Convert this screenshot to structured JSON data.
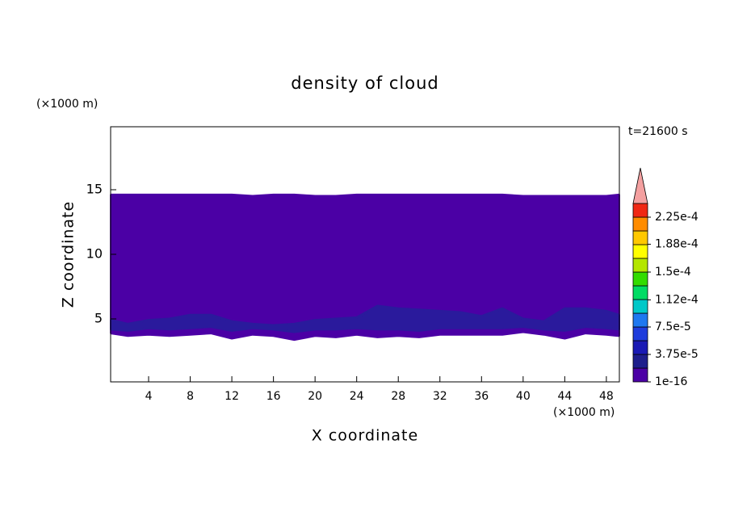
{
  "chart_data": {
    "type": "contour",
    "title": "density of cloud",
    "x_unit": "(×1000 m)",
    "y_unit": "(×1000 m)",
    "time_label": "t=21600 s",
    "xlabel": "X coordinate",
    "ylabel": "Z coordinate",
    "xlim": [
      0.35,
      49.25
    ],
    "ylim": [
      0.125,
      19.875
    ],
    "xticks": [
      4,
      8,
      12,
      16,
      20,
      24,
      28,
      32,
      36,
      40,
      44,
      48
    ],
    "yticks": [
      5,
      10,
      15
    ],
    "x": [
      0.4,
      2,
      4,
      6,
      8,
      10,
      12,
      14,
      16,
      18,
      20,
      22,
      24,
      26,
      28,
      30,
      32,
      34,
      36,
      38,
      40,
      42,
      44,
      46,
      48,
      49.2
    ],
    "series": [
      {
        "color": "#4b00a5",
        "top": [
          14.6,
          14.6,
          14.6,
          14.6,
          14.6,
          14.6,
          14.6,
          14.5,
          14.6,
          14.6,
          14.5,
          14.5,
          14.6,
          14.6,
          14.6,
          14.6,
          14.6,
          14.6,
          14.6,
          14.6,
          14.5,
          14.5,
          14.5,
          14.5,
          14.5,
          14.6
        ],
        "bottom": [
          3.9,
          3.7,
          3.8,
          3.7,
          3.8,
          3.9,
          3.5,
          3.8,
          3.7,
          3.4,
          3.7,
          3.6,
          3.8,
          3.6,
          3.7,
          3.6,
          3.8,
          3.8,
          3.8,
          3.8,
          4.0,
          3.8,
          3.5,
          3.9,
          3.8,
          3.7
        ]
      },
      {
        "color": "#2a1a9c",
        "top": [
          4.9,
          4.6,
          4.9,
          5.0,
          5.3,
          5.3,
          4.8,
          4.6,
          4.5,
          4.6,
          4.9,
          5.0,
          5.1,
          6.0,
          5.8,
          5.7,
          5.6,
          5.5,
          5.2,
          5.8,
          5.0,
          4.8,
          5.8,
          5.8,
          5.6,
          5.3
        ],
        "bottom": [
          4.2,
          4.1,
          4.3,
          4.2,
          4.3,
          4.4,
          4.1,
          4.3,
          4.2,
          4.0,
          4.2,
          4.2,
          4.3,
          4.2,
          4.2,
          4.1,
          4.3,
          4.3,
          4.3,
          4.3,
          4.4,
          4.2,
          4.1,
          4.4,
          4.3,
          4.2
        ]
      }
    ],
    "colorbar": {
      "lim": [
        1e-16,
        0.00024375
      ],
      "colors": [
        "#4b00a5",
        "#1e1e8c",
        "#1a1ab4",
        "#1e3cdc",
        "#1e78f0",
        "#00c8c8",
        "#00dc64",
        "#32dc00",
        "#b4e600",
        "#ffff00",
        "#ffc800",
        "#ff8c00",
        "#f02814"
      ],
      "extend_color": "#f4a0a0",
      "ticks": [
        1e-16,
        {
          "value": 3.75e-05,
          "label": "3.75e-5"
        },
        {
          "value": 7.5e-05,
          "label": "7.5e-5"
        },
        {
          "value": 0.000112,
          "label": "1.12e-4"
        },
        {
          "value": 0.00015,
          "label": "1.5e-4"
        },
        {
          "value": 0.000188,
          "label": "1.88e-4"
        },
        {
          "value": 0.000225,
          "label": "2.25e-4"
        }
      ]
    }
  }
}
